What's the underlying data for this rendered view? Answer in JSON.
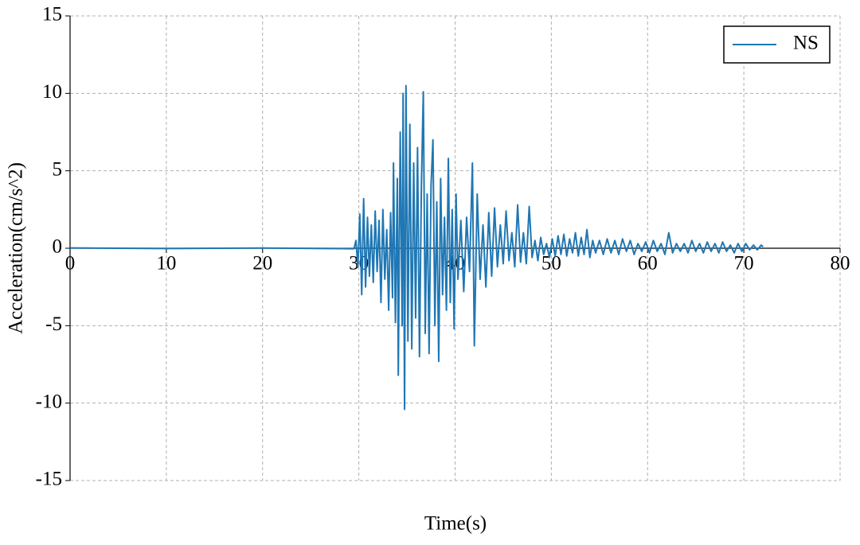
{
  "chart_data": {
    "type": "line",
    "x_label": "Time(s)",
    "y_label": "Acceleration(cm/s^2)",
    "xlim": [
      0,
      80
    ],
    "xticks": [
      0,
      10,
      20,
      30,
      40,
      50,
      60,
      70,
      80
    ],
    "ylim": [
      -15,
      15
    ],
    "yticks": [
      -15,
      -10,
      -5,
      0,
      5,
      10,
      15
    ],
    "grid": true,
    "legend": "upper right",
    "x": [
      0,
      10,
      20,
      29.5,
      29.7,
      29.9,
      30.1,
      30.3,
      30.5,
      30.7,
      30.9,
      31.1,
      31.3,
      31.5,
      31.7,
      31.9,
      32.1,
      32.3,
      32.5,
      32.7,
      32.9,
      33.1,
      33.3,
      33.5,
      33.6,
      33.8,
      34.0,
      34.1,
      34.3,
      34.5,
      34.6,
      34.75,
      34.9,
      35.1,
      35.3,
      35.5,
      35.7,
      35.9,
      36.1,
      36.3,
      36.5,
      36.7,
      36.9,
      37.1,
      37.3,
      37.5,
      37.7,
      37.9,
      38.1,
      38.3,
      38.5,
      38.7,
      38.9,
      39.1,
      39.3,
      39.5,
      39.7,
      39.9,
      40.1,
      40.3,
      40.6,
      40.9,
      41.2,
      41.5,
      41.8,
      42.0,
      42.3,
      42.6,
      42.9,
      43.2,
      43.5,
      43.8,
      44.1,
      44.4,
      44.7,
      45.0,
      45.3,
      45.6,
      45.9,
      46.2,
      46.5,
      46.8,
      47.1,
      47.4,
      47.7,
      48.0,
      48.3,
      48.6,
      48.9,
      49.2,
      49.5,
      49.8,
      50.1,
      50.4,
      50.7,
      51.0,
      51.3,
      51.6,
      51.9,
      52.2,
      52.5,
      52.8,
      53.1,
      53.4,
      53.7,
      54.0,
      54.3,
      54.6,
      55,
      55.4,
      55.8,
      56.2,
      56.6,
      57,
      57.4,
      57.8,
      58.2,
      58.6,
      59,
      59.4,
      59.8,
      60.2,
      60.6,
      61,
      61.4,
      61.8,
      62.2,
      62.6,
      63,
      63.4,
      63.8,
      64.2,
      64.6,
      65,
      65.4,
      65.8,
      66.2,
      66.6,
      67,
      67.4,
      67.8,
      68.2,
      68.6,
      69,
      69.4,
      69.8,
      70.2,
      70.6,
      71,
      71.4,
      71.8,
      72
    ],
    "series": [
      {
        "name": "NS",
        "color": "#1f77b4",
        "values": [
          0.02,
          -0.02,
          0.01,
          -0.03,
          0.5,
          -1.2,
          2.2,
          -3.0,
          3.2,
          -2.5,
          2.0,
          -1.8,
          1.5,
          -2.2,
          2.4,
          -1.5,
          1.8,
          -3.5,
          2.5,
          -2.0,
          1.2,
          -4.0,
          2.3,
          -3.2,
          5.5,
          -4.8,
          4.5,
          -8.2,
          7.5,
          -5.0,
          10.0,
          -10.4,
          10.5,
          -6.0,
          8.0,
          -6.5,
          5.5,
          -4.5,
          6.5,
          -7.0,
          4.0,
          10.1,
          -5.5,
          3.5,
          -6.8,
          4.0,
          7.0,
          -5.0,
          3.0,
          -7.3,
          4.5,
          -3.0,
          2.0,
          -4.0,
          5.8,
          -3.5,
          2.5,
          -5.2,
          3.5,
          -2.0,
          1.8,
          -2.8,
          2.0,
          -1.5,
          5.5,
          -6.3,
          3.5,
          -2.0,
          1.5,
          -2.5,
          2.3,
          -1.8,
          2.6,
          -1.2,
          1.5,
          -1.0,
          2.4,
          -0.8,
          1.0,
          -1.2,
          2.8,
          -0.9,
          1.0,
          -1.0,
          2.7,
          -0.6,
          0.5,
          -0.8,
          0.7,
          -0.4,
          0.3,
          -0.6,
          0.6,
          -0.5,
          0.8,
          -0.4,
          0.9,
          -0.5,
          0.6,
          -0.3,
          1.0,
          -0.5,
          0.7,
          -0.4,
          1.2,
          -0.6,
          0.5,
          -0.3,
          0.5,
          -0.4,
          0.6,
          -0.3,
          0.5,
          -0.4,
          0.6,
          -0.2,
          0.5,
          -0.4,
          0.3,
          -0.2,
          0.4,
          -0.3,
          0.5,
          -0.2,
          0.3,
          -0.4,
          1.0,
          -0.3,
          0.3,
          -0.2,
          0.3,
          -0.3,
          0.5,
          -0.2,
          0.3,
          -0.3,
          0.4,
          -0.2,
          0.3,
          -0.3,
          0.4,
          -0.2,
          0.2,
          -0.3,
          0.3,
          -0.2,
          0.3,
          -0.1,
          0.2,
          -0.1,
          0.2,
          0.1
        ]
      }
    ]
  }
}
